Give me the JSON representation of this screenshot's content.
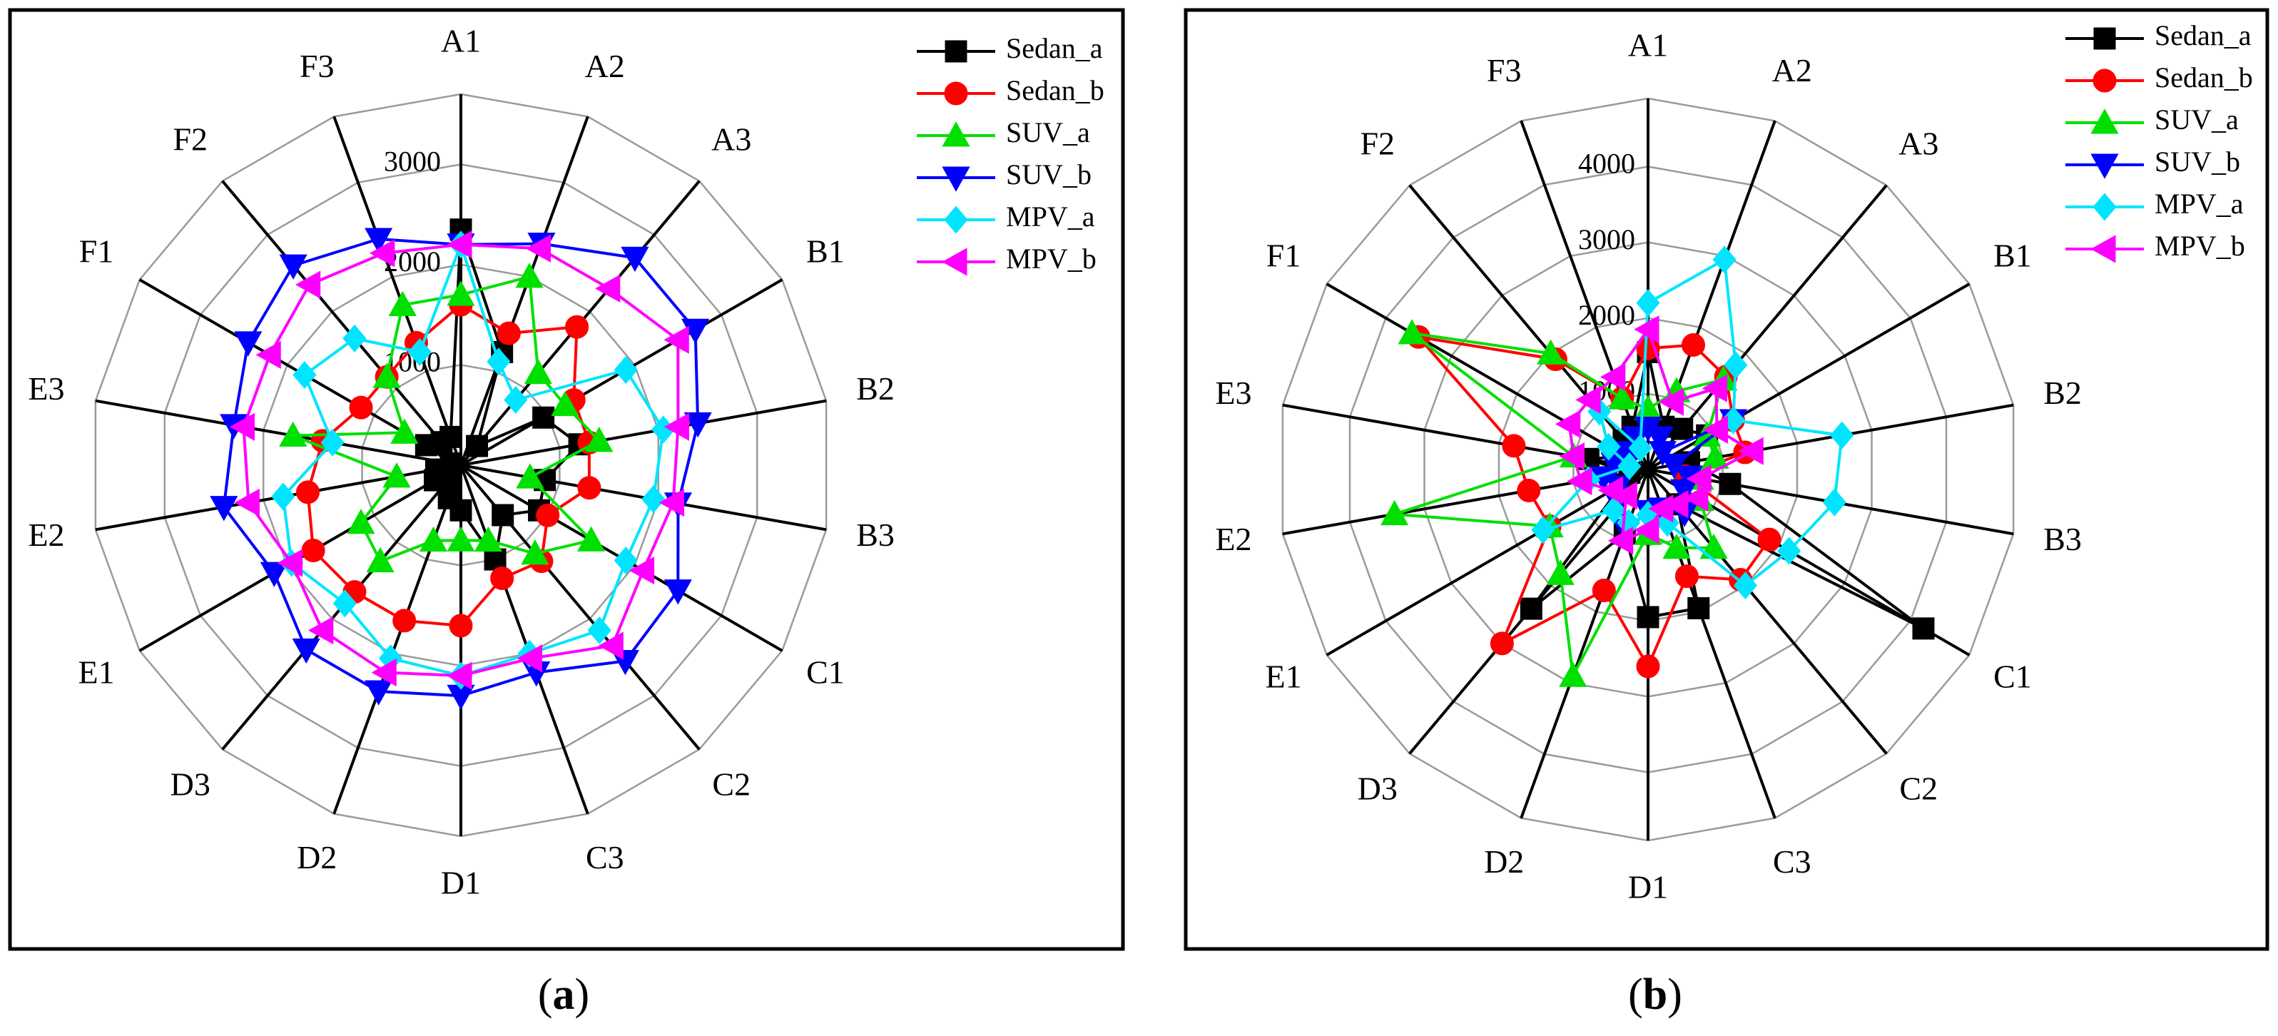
{
  "chart_data": [
    {
      "type": "radar",
      "caption": "a",
      "axes": [
        "A1",
        "A2",
        "A3",
        "B1",
        "B2",
        "B3",
        "C1",
        "C2",
        "C3",
        "D1",
        "D2",
        "D3",
        "E1",
        "E2",
        "E3",
        "F1",
        "F2",
        "F3"
      ],
      "ticks": [
        1000,
        2000,
        3000
      ],
      "rmax": 3000,
      "grid_max": 3700,
      "series": [
        {
          "name": "Sedan_a",
          "color": "#000000",
          "marker": "square",
          "values": [
            2350,
            1200,
            250,
            950,
            1200,
            850,
            900,
            650,
            1000,
            450,
            350,
            150,
            300,
            250,
            100,
            400,
            300,
            300
          ]
        },
        {
          "name": "Sedan_b",
          "color": "#ff0000",
          "marker": "circle",
          "values": [
            1600,
            1400,
            1800,
            1300,
            1300,
            1300,
            1000,
            1250,
            1200,
            1600,
            1650,
            1650,
            1700,
            1550,
            1400,
            1150,
            1150,
            1300
          ]
        },
        {
          "name": "SUV_a",
          "color": "#00e000",
          "marker": "triangle-up",
          "values": [
            1700,
            2000,
            1200,
            1200,
            1400,
            700,
            1500,
            1150,
            800,
            750,
            800,
            1250,
            1150,
            650,
            1700,
            650,
            1150,
            1700
          ]
        },
        {
          "name": "SUV_b",
          "color": "#0000ff",
          "marker": "triangle-down",
          "values": [
            2200,
            2350,
            2700,
            2700,
            2400,
            2200,
            2500,
            2550,
            2200,
            2300,
            2400,
            2400,
            2150,
            2400,
            2300,
            2450,
            2600,
            2400
          ]
        },
        {
          "name": "MPV_a",
          "color": "#00e5ff",
          "marker": "diamond",
          "values": [
            2200,
            1100,
            850,
            1900,
            2050,
            1950,
            1900,
            2150,
            2000,
            2100,
            2050,
            1800,
            1950,
            1800,
            1300,
            1800,
            1650,
            1200
          ]
        },
        {
          "name": "MPV_b",
          "color": "#ff00ff",
          "marker": "triangle-left",
          "values": [
            2200,
            2300,
            2300,
            2500,
            2200,
            2150,
            2100,
            2350,
            2050,
            2100,
            2200,
            2150,
            1950,
            2150,
            2200,
            2200,
            2350,
            2250
          ]
        }
      ]
    },
    {
      "type": "radar",
      "caption": "b",
      "axes": [
        "A1",
        "A2",
        "A3",
        "B1",
        "B2",
        "B3",
        "C1",
        "C2",
        "C3",
        "D1",
        "D2",
        "D3",
        "E1",
        "E2",
        "E3",
        "F1",
        "F2",
        "F3"
      ],
      "ticks": [
        1000,
        2000,
        3000,
        4000
      ],
      "rmax": 4000,
      "grid_max": 4900,
      "series": [
        {
          "name": "Sedan_a",
          "color": "#000000",
          "marker": "square",
          "values": [
            1550,
            600,
            700,
            900,
            550,
            1100,
            4200,
            600,
            1950,
            1950,
            900,
            2400,
            400,
            250,
            800,
            350,
            500,
            600
          ]
        },
        {
          "name": "Sedan_b",
          "color": "#ff0000",
          "marker": "circle",
          "values": [
            1600,
            1750,
            1600,
            1300,
            1300,
            500,
            1850,
            1900,
            1500,
            2600,
            1700,
            3000,
            1500,
            1600,
            1800,
            3500,
            1900,
            1000
          ]
        },
        {
          "name": "SUV_a",
          "color": "#00e000",
          "marker": "triangle-up",
          "values": [
            800,
            1100,
            1550,
            900,
            900,
            700,
            800,
            1350,
            1100,
            850,
            2900,
            1800,
            1500,
            3400,
            1000,
            3600,
            2000,
            1000
          ]
        },
        {
          "name": "SUV_b",
          "color": "#0000ff",
          "marker": "triangle-down",
          "values": [
            550,
            450,
            300,
            1300,
            350,
            550,
            550,
            750,
            550,
            550,
            850,
            600,
            450,
            600,
            450,
            450,
            300,
            450
          ]
        },
        {
          "name": "MPV_a",
          "color": "#00e5ff",
          "marker": "diamond",
          "values": [
            2200,
            2950,
            1800,
            1300,
            2600,
            2500,
            2150,
            2000,
            750,
            600,
            750,
            700,
            1600,
            800,
            250,
            600,
            1000,
            300
          ]
        },
        {
          "name": "MPV_b",
          "color": "#ff00ff",
          "marker": "triangle-left",
          "values": [
            1850,
            950,
            1400,
            1050,
            1400,
            700,
            750,
            600,
            550,
            800,
            1000,
            450,
            550,
            900,
            1000,
            1200,
            1200,
            1300
          ]
        }
      ]
    }
  ]
}
